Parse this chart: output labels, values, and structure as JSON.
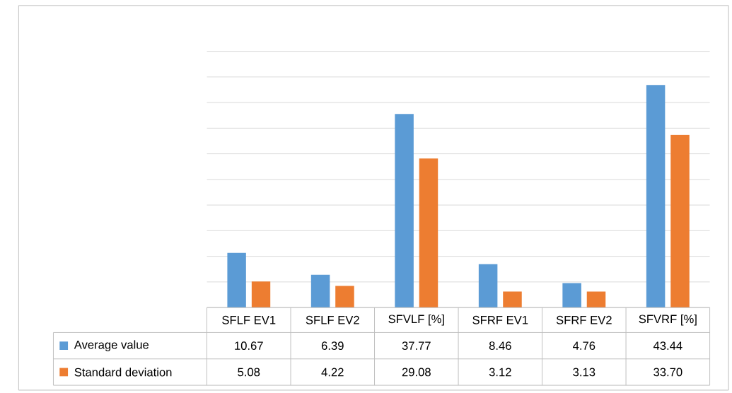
{
  "chart_data": {
    "type": "bar",
    "categories": [
      "SFLF EV1",
      "SFLF EV2",
      "SFVLF [%]",
      "SFRF EV1",
      "SFRF EV2",
      "SFVRF [%]"
    ],
    "series": [
      {
        "name": "Average value",
        "color": "#5b9bd5",
        "values": [
          10.67,
          6.39,
          37.77,
          8.46,
          4.76,
          43.44
        ],
        "value_labels": [
          "10.67",
          "6.39",
          "37.77",
          "8.46",
          "4.76",
          "43.44"
        ]
      },
      {
        "name": "Standard deviation",
        "color": "#ed7d31",
        "values": [
          5.08,
          4.22,
          29.08,
          3.12,
          3.13,
          33.7
        ],
        "value_labels": [
          "5.08",
          "4.22",
          "29.08",
          "3.12",
          "3.13",
          "33.70"
        ]
      }
    ],
    "ylim": [
      0,
      50
    ],
    "yticks": [
      {
        "value": 0,
        "label": null
      },
      {
        "value": 5,
        "label": null
      },
      {
        "value": 10,
        "label": null
      },
      {
        "value": 15,
        "label": null
      },
      {
        "value": 20,
        "label": null
      },
      {
        "value": 25,
        "label": null
      },
      {
        "value": 30,
        "label": null
      },
      {
        "value": 35,
        "label": null
      },
      {
        "value": 40,
        "label": null
      },
      {
        "value": 45,
        "label": null
      },
      {
        "value": 50,
        "label": null
      }
    ],
    "grid": "y",
    "legend": "bottom left",
    "tick_labels": "x"
  }
}
